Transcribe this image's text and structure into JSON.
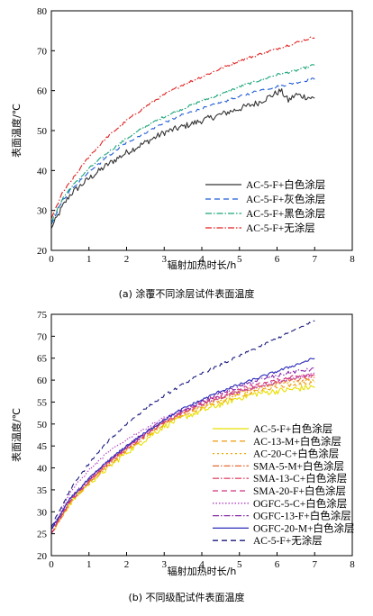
{
  "chart_data": [
    {
      "type": "line",
      "caption": "(a) 涂覆不同涂层试件表面温度",
      "xlabel": "辐射加热时长/h",
      "ylabel": "表面温度/℃",
      "xlim": [
        0,
        8
      ],
      "ylim": [
        20,
        80
      ],
      "xticks": [
        0,
        1,
        2,
        3,
        4,
        5,
        6,
        7,
        8
      ],
      "yticks": [
        20,
        30,
        40,
        50,
        60,
        70,
        80
      ],
      "legend_position": "bottom-right",
      "series": [
        {
          "name": "AC-5-F+白色涂层",
          "color": "#333333",
          "dash": "solid",
          "noise": 0.8,
          "points": [
            [
              0,
              25.5
            ],
            [
              0.3,
              31
            ],
            [
              0.5,
              34
            ],
            [
              1,
              38
            ],
            [
              1.5,
              41.5
            ],
            [
              2,
              44.5
            ],
            [
              2.5,
              47
            ],
            [
              3,
              49.5
            ],
            [
              3.5,
              51
            ],
            [
              4,
              52.5
            ],
            [
              4.5,
              54
            ],
            [
              5,
              55.5
            ],
            [
              5.5,
              57
            ],
            [
              5.9,
              59
            ],
            [
              6.1,
              60
            ],
            [
              6.3,
              57.5
            ],
            [
              6.5,
              59
            ],
            [
              7,
              58
            ]
          ]
        },
        {
          "name": "AC-5-F+灰色涂层",
          "color": "#1f5bd6",
          "dash": "6,4",
          "noise": 0.3,
          "points": [
            [
              0,
              26.5
            ],
            [
              0.3,
              32.5
            ],
            [
              0.5,
              35
            ],
            [
              1,
              39.5
            ],
            [
              1.5,
              43.5
            ],
            [
              2,
              47
            ],
            [
              2.5,
              49.5
            ],
            [
              3,
              52
            ],
            [
              3.5,
              54
            ],
            [
              4,
              55.5
            ],
            [
              4.5,
              57
            ],
            [
              5,
              58.5
            ],
            [
              5.5,
              60
            ],
            [
              6,
              61
            ],
            [
              6.5,
              62
            ],
            [
              7,
              63
            ]
          ]
        },
        {
          "name": "AC-5-F+黑色涂层",
          "color": "#1aa37a",
          "dash": "7,2,1.5,2",
          "noise": 0.3,
          "points": [
            [
              0,
              27
            ],
            [
              0.3,
              33
            ],
            [
              0.5,
              35.5
            ],
            [
              1,
              40.5
            ],
            [
              1.5,
              44.5
            ],
            [
              2,
              48
            ],
            [
              2.5,
              51
            ],
            [
              3,
              53.5
            ],
            [
              3.5,
              55.5
            ],
            [
              4,
              57.5
            ],
            [
              4.5,
              59
            ],
            [
              5,
              61
            ],
            [
              5.5,
              62.5
            ],
            [
              6,
              64
            ],
            [
              6.5,
              65
            ],
            [
              7,
              66.5
            ]
          ]
        },
        {
          "name": "AC-5-F+无涂层",
          "color": "#e02020",
          "dash": "7,2,1.5,2",
          "noise": 0.3,
          "points": [
            [
              0,
              28
            ],
            [
              0.3,
              34.5
            ],
            [
              0.5,
              37
            ],
            [
              1,
              43.5
            ],
            [
              1.5,
              48.5
            ],
            [
              2,
              52.5
            ],
            [
              2.5,
              56
            ],
            [
              3,
              59
            ],
            [
              3.5,
              61.5
            ],
            [
              4,
              63.5
            ],
            [
              4.5,
              65.5
            ],
            [
              5,
              67.5
            ],
            [
              5.5,
              69
            ],
            [
              6,
              70.5
            ],
            [
              6.5,
              72
            ],
            [
              7,
              73.5
            ]
          ]
        }
      ]
    },
    {
      "type": "line",
      "caption": "(b) 不同级配试件表面温度",
      "xlabel": "辐射加热时长/h",
      "ylabel": "表面温度/℃",
      "xlim": [
        0,
        8
      ],
      "ylim": [
        20,
        75
      ],
      "xticks": [
        0,
        1,
        2,
        3,
        4,
        5,
        6,
        7,
        8
      ],
      "yticks": [
        20,
        25,
        30,
        35,
        40,
        45,
        50,
        55,
        60,
        65,
        70,
        75
      ],
      "legend_position": "bottom-right",
      "series": [
        {
          "name": "AC-5-F+白色涂层",
          "color": "#e8e000",
          "dash": "solid",
          "noise": 0.7,
          "points": [
            [
              0,
              25
            ],
            [
              0.5,
              32
            ],
            [
              1,
              36.5
            ],
            [
              1.5,
              40
            ],
            [
              2,
              43.5
            ],
            [
              2.5,
              46.5
            ],
            [
              3,
              49.5
            ],
            [
              3.5,
              51.5
            ],
            [
              4,
              53
            ],
            [
              4.5,
              54.5
            ],
            [
              5,
              56
            ],
            [
              5.5,
              57
            ],
            [
              6,
              57.5
            ],
            [
              6.5,
              58
            ],
            [
              7,
              58.5
            ]
          ]
        },
        {
          "name": "AC-13-M+白色涂层",
          "color": "#f2a020",
          "dash": "6,4",
          "noise": 0.4,
          "points": [
            [
              0,
              25
            ],
            [
              0.5,
              32
            ],
            [
              1,
              36.5
            ],
            [
              1.5,
              40.5
            ],
            [
              2,
              44
            ],
            [
              2.5,
              47
            ],
            [
              3,
              50
            ],
            [
              3.5,
              52
            ],
            [
              4,
              53.5
            ],
            [
              4.5,
              55
            ],
            [
              5,
              56.5
            ],
            [
              5.5,
              57.5
            ],
            [
              6,
              58.5
            ],
            [
              6.5,
              59
            ],
            [
              7,
              59.5
            ]
          ]
        },
        {
          "name": "AC-20-C+白色涂层",
          "color": "#e8a800",
          "dash": "2,3",
          "noise": 0.4,
          "points": [
            [
              0,
              25
            ],
            [
              0.5,
              32
            ],
            [
              1,
              36.5
            ],
            [
              1.5,
              40.5
            ],
            [
              2,
              44
            ],
            [
              2.5,
              47
            ],
            [
              3,
              50
            ],
            [
              3.5,
              52
            ],
            [
              4,
              54
            ],
            [
              4.5,
              55.5
            ],
            [
              5,
              57
            ],
            [
              5.5,
              58
            ],
            [
              6,
              59
            ],
            [
              6.5,
              59.5
            ],
            [
              7,
              60
            ]
          ]
        },
        {
          "name": "SMA-5-M+白色涂层",
          "color": "#e66a30",
          "dash": "7,2,1.5,2",
          "noise": 0.4,
          "points": [
            [
              0,
              25
            ],
            [
              0.5,
              32.5
            ],
            [
              1,
              37
            ],
            [
              1.5,
              41
            ],
            [
              2,
              44.5
            ],
            [
              2.5,
              47.5
            ],
            [
              3,
              50.5
            ],
            [
              3.5,
              52.5
            ],
            [
              4,
              54.5
            ],
            [
              4.5,
              56
            ],
            [
              5,
              57.5
            ],
            [
              5.5,
              58.5
            ],
            [
              6,
              59.5
            ],
            [
              6.5,
              60
            ],
            [
              7,
              60.5
            ]
          ]
        },
        {
          "name": "SMA-13-C+白色涂层",
          "color": "#e05070",
          "dash": "7,2,1.5,2",
          "noise": 0.4,
          "points": [
            [
              0,
              25
            ],
            [
              0.5,
              32.5
            ],
            [
              1,
              37
            ],
            [
              1.5,
              41
            ],
            [
              2,
              44.5
            ],
            [
              2.5,
              47.5
            ],
            [
              3,
              50.5
            ],
            [
              3.5,
              52.5
            ],
            [
              4,
              54.5
            ],
            [
              4.5,
              56
            ],
            [
              5,
              57.5
            ],
            [
              5.5,
              58.5
            ],
            [
              6,
              59.5
            ],
            [
              6.5,
              60.5
            ],
            [
              7,
              61
            ]
          ]
        },
        {
          "name": "SMA-20-F+白色涂层",
          "color": "#d03080",
          "dash": "6,4",
          "noise": 0.4,
          "points": [
            [
              0,
              25
            ],
            [
              0.5,
              32.5
            ],
            [
              1,
              37
            ],
            [
              1.5,
              41
            ],
            [
              2,
              44.5
            ],
            [
              2.5,
              47.5
            ],
            [
              3,
              50.5
            ],
            [
              3.5,
              53
            ],
            [
              4,
              55
            ],
            [
              4.5,
              56.5
            ],
            [
              5,
              58
            ],
            [
              5.5,
              59
            ],
            [
              6,
              60
            ],
            [
              6.5,
              61
            ],
            [
              7,
              61.5
            ]
          ]
        },
        {
          "name": "OGFC-5-C+白色涂层",
          "color": "#b040c0",
          "dash": "1.5,2",
          "noise": 0.3,
          "points": [
            [
              0,
              25.5
            ],
            [
              0.5,
              34.5
            ],
            [
              1,
              39.5
            ],
            [
              1.5,
              43.5
            ],
            [
              2,
              46.5
            ],
            [
              2.5,
              49
            ],
            [
              3,
              51.5
            ],
            [
              3.5,
              53
            ],
            [
              4,
              54.5
            ],
            [
              4.5,
              56
            ],
            [
              5,
              57.5
            ],
            [
              5.5,
              58.5
            ],
            [
              6,
              59.5
            ],
            [
              6.5,
              60.5
            ],
            [
              7,
              61.5
            ]
          ]
        },
        {
          "name": "OGFC-13-F+白色涂层",
          "color": "#8a2aa8",
          "dash": "7,2,1.5,2",
          "noise": 0.4,
          "points": [
            [
              0,
              26
            ],
            [
              0.5,
              33
            ],
            [
              1,
              37.5
            ],
            [
              1.5,
              41.5
            ],
            [
              2,
              45
            ],
            [
              2.5,
              48
            ],
            [
              3,
              51
            ],
            [
              3.5,
              53
            ],
            [
              4,
              55
            ],
            [
              4.5,
              57
            ],
            [
              5,
              58.5
            ],
            [
              5.5,
              60
            ],
            [
              6,
              61
            ],
            [
              6.5,
              62
            ],
            [
              7,
              62.5
            ]
          ]
        },
        {
          "name": "OGFC-20-M+白色涂层",
          "color": "#2a2ab8",
          "dash": "solid",
          "noise": 0.3,
          "points": [
            [
              0,
              26
            ],
            [
              0.5,
              33
            ],
            [
              1,
              37.5
            ],
            [
              1.5,
              41.5
            ],
            [
              2,
              45
            ],
            [
              2.5,
              48
            ],
            [
              3,
              51
            ],
            [
              3.5,
              53.5
            ],
            [
              4,
              55.5
            ],
            [
              4.5,
              57.5
            ],
            [
              5,
              59
            ],
            [
              5.5,
              60.5
            ],
            [
              6,
              62
            ],
            [
              6.5,
              63.5
            ],
            [
              7,
              65
            ]
          ]
        },
        {
          "name": "AC-5-F+无涂层",
          "color": "#1a1a80",
          "dash": "6,4",
          "noise": 0.3,
          "points": [
            [
              0,
              26.5
            ],
            [
              0.5,
              35
            ],
            [
              1,
              41
            ],
            [
              1.5,
              46
            ],
            [
              2,
              50
            ],
            [
              2.5,
              53.5
            ],
            [
              3,
              56.5
            ],
            [
              3.5,
              59
            ],
            [
              4,
              61.5
            ],
            [
              4.5,
              63.5
            ],
            [
              5,
              65.5
            ],
            [
              5.5,
              67.5
            ],
            [
              6,
              69.5
            ],
            [
              6.5,
              71.5
            ],
            [
              7,
              73.5
            ]
          ]
        }
      ]
    }
  ]
}
